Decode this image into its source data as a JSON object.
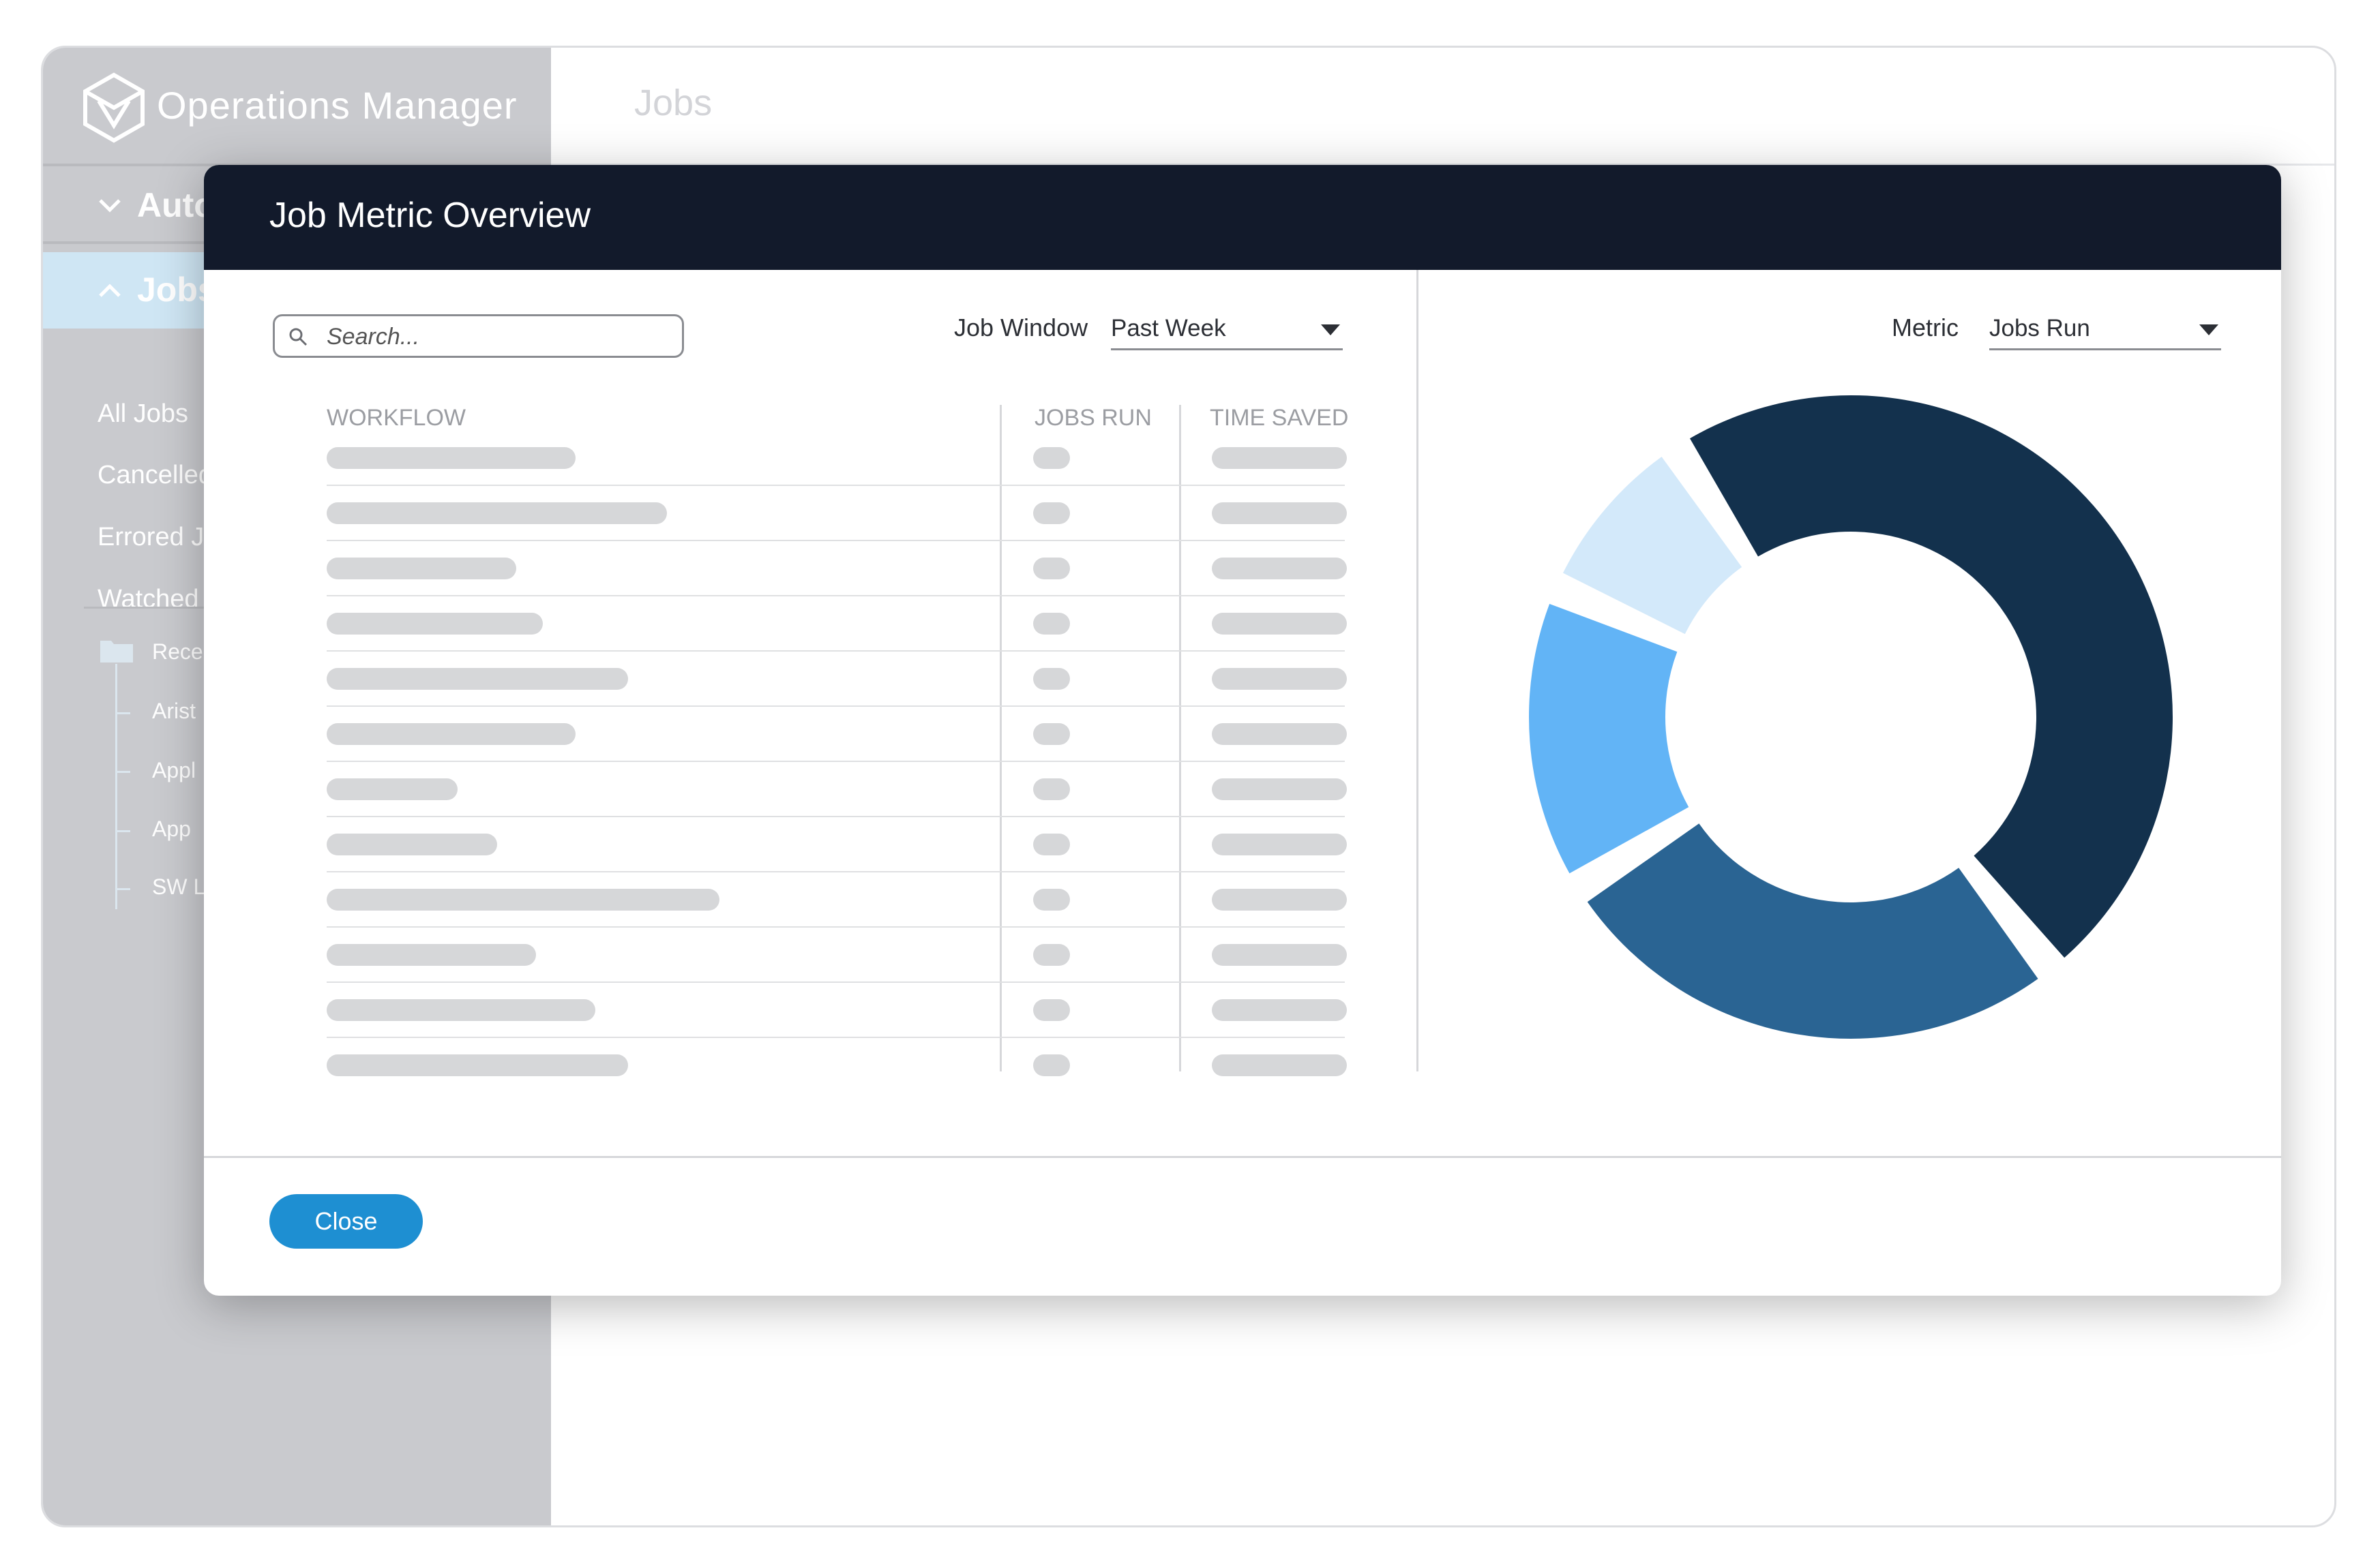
{
  "app": {
    "name": "Operations Manager",
    "page_title": "Jobs"
  },
  "sidebar": {
    "groups": [
      {
        "label": "Auto"
      },
      {
        "label": "Jobs"
      }
    ],
    "links": [
      {
        "label": "All Jobs"
      },
      {
        "label": "Cancelled"
      },
      {
        "label": "Errored J"
      },
      {
        "label": "Watched"
      }
    ],
    "tree": {
      "root": "Rece",
      "children": [
        "Arist",
        "Appl",
        "App",
        "SW L"
      ]
    }
  },
  "modal": {
    "title": "Job Metric Overview",
    "search": {
      "placeholder": "Search..."
    },
    "job_window": {
      "label": "Job Window",
      "value": "Past Week"
    },
    "metric": {
      "label": "Metric",
      "value": "Jobs Run"
    },
    "table": {
      "columns": [
        "WORKFLOW",
        "JOBS RUN",
        "TIME SAVED"
      ],
      "row_count": 12,
      "name_bar_fraction": [
        0.38,
        0.52,
        0.29,
        0.33,
        0.46,
        0.38,
        0.2,
        0.26,
        0.6,
        0.32,
        0.41,
        0.46
      ]
    },
    "close_label": "Close"
  },
  "chart_data": {
    "type": "pie",
    "style": "donut",
    "title": "",
    "labels": [
      "",
      "",
      "",
      ""
    ],
    "values": [
      47,
      26,
      15,
      9
    ],
    "colors": [
      "#13314d",
      "#2a6493",
      "#62b4f6",
      "#d3e9fa"
    ]
  }
}
